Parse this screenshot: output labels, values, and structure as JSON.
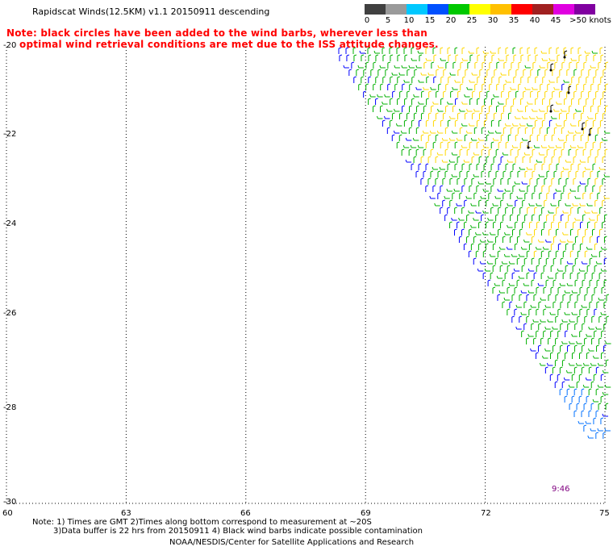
{
  "header": {
    "title": "Rapidscat Winds(12.5KM) v1.1 20150911 descending"
  },
  "note": {
    "line1": "Note: black circles have been added to the wind barbs, wherever less than",
    "line2": "optimal wind retrieval conditions are met due to the ISS attitude changes."
  },
  "legend": {
    "unit": "knots",
    "labels": [
      "0",
      "5",
      "10",
      "15",
      "20",
      "25",
      "30",
      "35",
      "40",
      "45",
      ">50 knots"
    ],
    "colors": [
      "#404040",
      "#9a9a9a",
      "#00c8ff",
      "#0050ff",
      "#00c800",
      "#ffff00",
      "#ffc000",
      "#ff0000",
      "#a02020",
      "#e000e0",
      "#8000a0"
    ]
  },
  "map": {
    "lat_labels": [
      "-20",
      "-22",
      "-24",
      "-26",
      "-28",
      "-30"
    ],
    "lon_labels": [
      "60",
      "63",
      "66",
      "69",
      "72",
      "75"
    ],
    "lat_range": [
      -30,
      -20
    ],
    "lon_range": [
      60,
      75
    ],
    "grid": "dotted",
    "swath_time": "9:46",
    "barb_colors": {
      "calm": "#0000ff",
      "light": "#00b000",
      "moderate": "#ffd800",
      "flagged": "#000000"
    }
  },
  "footer": {
    "note1": "Note: 1) Times are GMT 2)Times along bottom correspond to measurement at ~20S",
    "note2": "3)Data buffer is 22 hrs from 20150911 4) Black wind barbs indicate possible contamination",
    "credit": "NOAA/NESDIS/Center for Satellite Applications and Research"
  }
}
